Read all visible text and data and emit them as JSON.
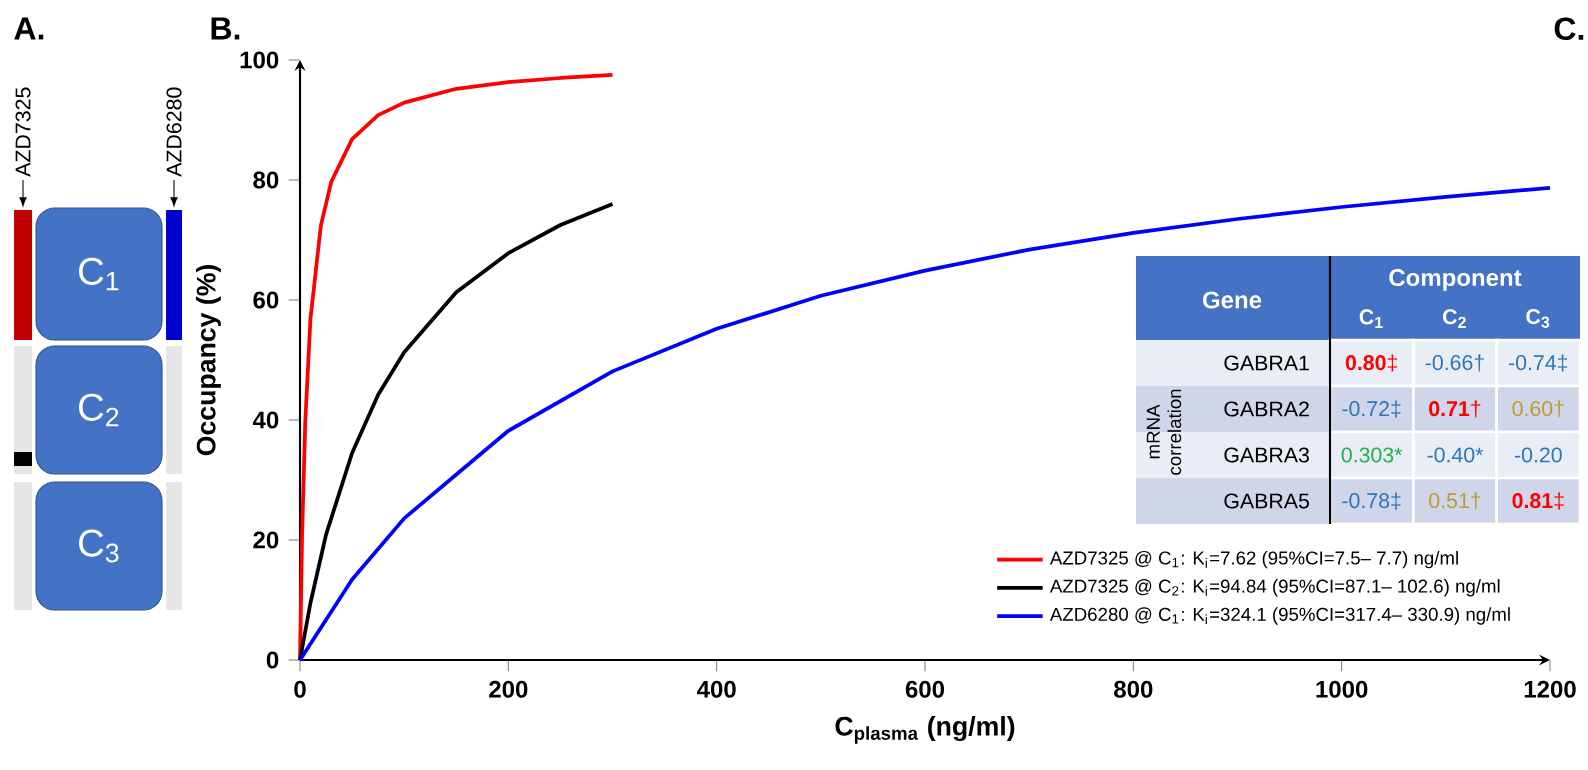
{
  "chart_data": [
    {
      "type": "other",
      "title": "A.",
      "annotations": [
        "AZD7325",
        "AZD6280",
        "C$_{1}$",
        "C$_{2}$",
        "C$_{3}$"
      ]
    },
    {
      "type": "line",
      "title": "B.",
      "xlabel": "C$_{plasma}$ (ng/ml)",
      "ylabel": "Occupancy (%)",
      "xlim": [
        0,
        1200
      ],
      "xticks": [
        0,
        200,
        400,
        600,
        800,
        1000,
        1200
      ],
      "ylim": [
        0,
        100
      ],
      "yticks": [
        0,
        20,
        40,
        60,
        80,
        100
      ],
      "legend": "bottom right",
      "grid": false,
      "marker": "none",
      "line_style": "solid",
      "series": [
        {
          "name": "AZD7325 @ C$_{1}$: K$_{i}$=7.62 (95%CI=7.5– 7.7) ng/ml",
          "color": "#ff0000",
          "x": [
            0,
            2,
            5,
            10,
            20,
            30,
            50,
            75,
            100,
            150,
            200,
            250,
            300
          ],
          "values": [
            0,
            20.8,
            39.6,
            56.8,
            72.4,
            79.7,
            86.8,
            90.8,
            92.9,
            95.2,
            96.3,
            97.0,
            97.5
          ]
        },
        {
          "name": "AZD7325 @ C$_{2}$: K$_{i}$=94.84 (95%CI=87.1– 102.6) ng/ml",
          "color": "#000000",
          "x": [
            0,
            10,
            25,
            50,
            75,
            100,
            150,
            200,
            250,
            300
          ],
          "values": [
            0,
            9.5,
            20.9,
            34.5,
            44.2,
            51.3,
            61.3,
            67.8,
            72.5,
            76.0
          ]
        },
        {
          "name": "AZD6280 @ C$_{1}$: K$_{i}$=324.1 (95%CI=317.4– 330.9) ng/ml",
          "color": "#0000ff",
          "x": [
            0,
            50,
            100,
            200,
            300,
            400,
            500,
            600,
            700,
            800,
            900,
            1000,
            1100,
            1200
          ],
          "values": [
            0,
            13.4,
            23.6,
            38.2,
            48.1,
            55.2,
            60.7,
            64.9,
            68.4,
            71.2,
            73.5,
            75.5,
            77.2,
            78.7
          ]
        }
      ]
    },
    {
      "type": "heatmap",
      "title": "C.",
      "ylabel": "mRNA correlation",
      "annotations": [
        "Gene",
        "Component"
      ],
      "categories": [
        "C$_{1}$",
        "C$_{2}$",
        "C$_{3}$"
      ],
      "y_categories": [
        "GABRA1",
        "GABRA2",
        "GABRA3",
        "GABRA5"
      ],
      "cells": [
        [
          0.8,
          -0.66,
          -0.74
        ],
        [
          -0.72,
          0.71,
          0.6
        ],
        [
          0.303,
          -0.4,
          -0.2
        ],
        [
          -0.78,
          0.51,
          0.81
        ]
      ],
      "cell_labels": [
        [
          "**0.80**‡",
          "-0.66†",
          "-0.74‡"
        ],
        [
          "-0.72‡",
          "**0.71**†",
          "0.60†"
        ],
        [
          "0.303*",
          "-0.40*",
          "-0.20"
        ],
        [
          "-0.78‡",
          "0.51†",
          "**0.81**‡"
        ]
      ]
    }
  ]
}
